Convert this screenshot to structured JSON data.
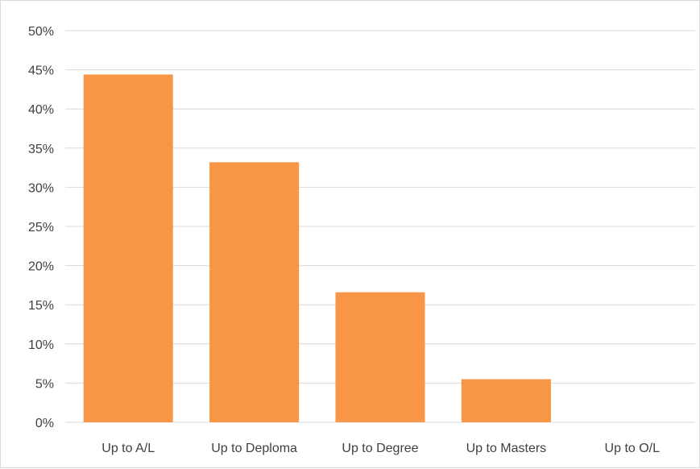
{
  "chart_data": {
    "type": "bar",
    "title": "",
    "xlabel": "",
    "ylabel": "",
    "categories": [
      "Up to A/L",
      "Up to Deploma",
      "Up to Degree",
      "Up to Masters",
      "Up to O/L"
    ],
    "values": [
      44.4,
      33.2,
      16.6,
      5.5,
      0
    ],
    "value_format": "percent",
    "ylim": [
      0,
      50
    ],
    "yticks": [
      0,
      5,
      10,
      15,
      20,
      25,
      30,
      35,
      40,
      45,
      50
    ],
    "ytick_labels": [
      "0%",
      "5%",
      "10%",
      "15%",
      "20%",
      "25%",
      "30%",
      "35%",
      "40%",
      "45%",
      "50%"
    ],
    "grid": true,
    "legend": "none",
    "colors": {
      "bar": "#F79646",
      "grid": "#D9D9D9",
      "text": "#404040",
      "frame": "#D9D9D9"
    }
  }
}
